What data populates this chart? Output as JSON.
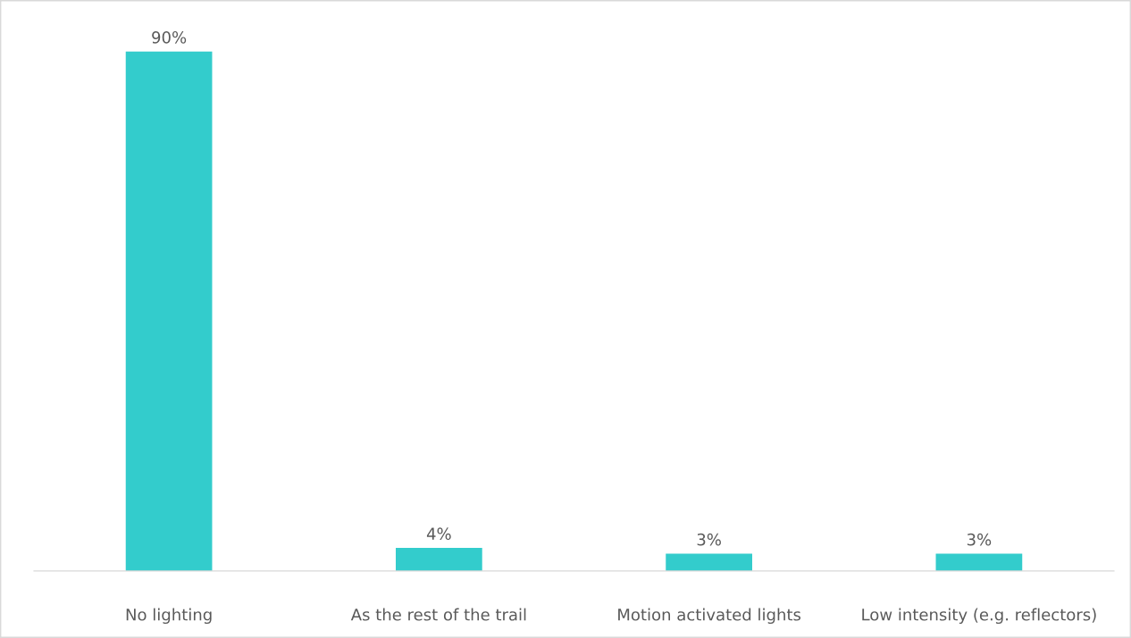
{
  "chart_data": {
    "type": "bar",
    "categories": [
      "No lighting",
      "As the rest of the trail",
      "Motion activated lights",
      "Low intensity (e.g. reflectors)"
    ],
    "values": [
      90,
      4,
      3,
      3
    ],
    "value_labels": [
      "90%",
      "4%",
      "3%",
      "3%"
    ],
    "color": "#33cccc",
    "grid": false,
    "legend": false
  }
}
